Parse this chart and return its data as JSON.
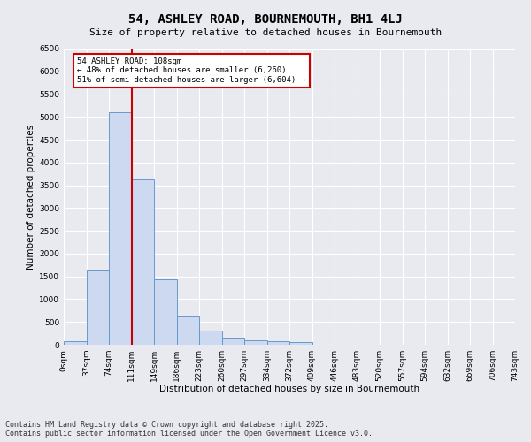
{
  "title": "54, ASHLEY ROAD, BOURNEMOUTH, BH1 4LJ",
  "subtitle": "Size of property relative to detached houses in Bournemouth",
  "xlabel": "Distribution of detached houses by size in Bournemouth",
  "ylabel": "Number of detached properties",
  "bar_values": [
    75,
    1650,
    5100,
    3620,
    1430,
    620,
    310,
    150,
    100,
    75,
    60,
    0,
    0,
    0,
    0,
    0,
    0,
    0,
    0,
    0
  ],
  "bin_labels": [
    "0sqm",
    "37sqm",
    "74sqm",
    "111sqm",
    "149sqm",
    "186sqm",
    "223sqm",
    "260sqm",
    "297sqm",
    "334sqm",
    "372sqm",
    "409sqm",
    "446sqm",
    "483sqm",
    "520sqm",
    "557sqm",
    "594sqm",
    "632sqm",
    "669sqm",
    "706sqm",
    "743sqm"
  ],
  "bar_color": "#ccd9f0",
  "bar_edge_color": "#6699cc",
  "vline_x": 3.0,
  "property_line_label": "54 ASHLEY ROAD: 108sqm",
  "annotation_line1": "← 48% of detached houses are smaller (6,260)",
  "annotation_line2": "51% of semi-detached houses are larger (6,604) →",
  "vline_color": "#cc0000",
  "annotation_box_color": "#cc0000",
  "ylim": [
    0,
    6500
  ],
  "yticks": [
    0,
    500,
    1000,
    1500,
    2000,
    2500,
    3000,
    3500,
    4000,
    4500,
    5000,
    5500,
    6000,
    6500
  ],
  "footnote": "Contains HM Land Registry data © Crown copyright and database right 2025.\nContains public sector information licensed under the Open Government Licence v3.0.",
  "bg_color": "#e8eaf0",
  "plot_bg_color": "#e8eaf0",
  "title_fontsize": 10,
  "subtitle_fontsize": 8,
  "axis_label_fontsize": 7.5,
  "tick_fontsize": 6.5,
  "annotation_fontsize": 6.5,
  "footnote_fontsize": 6
}
